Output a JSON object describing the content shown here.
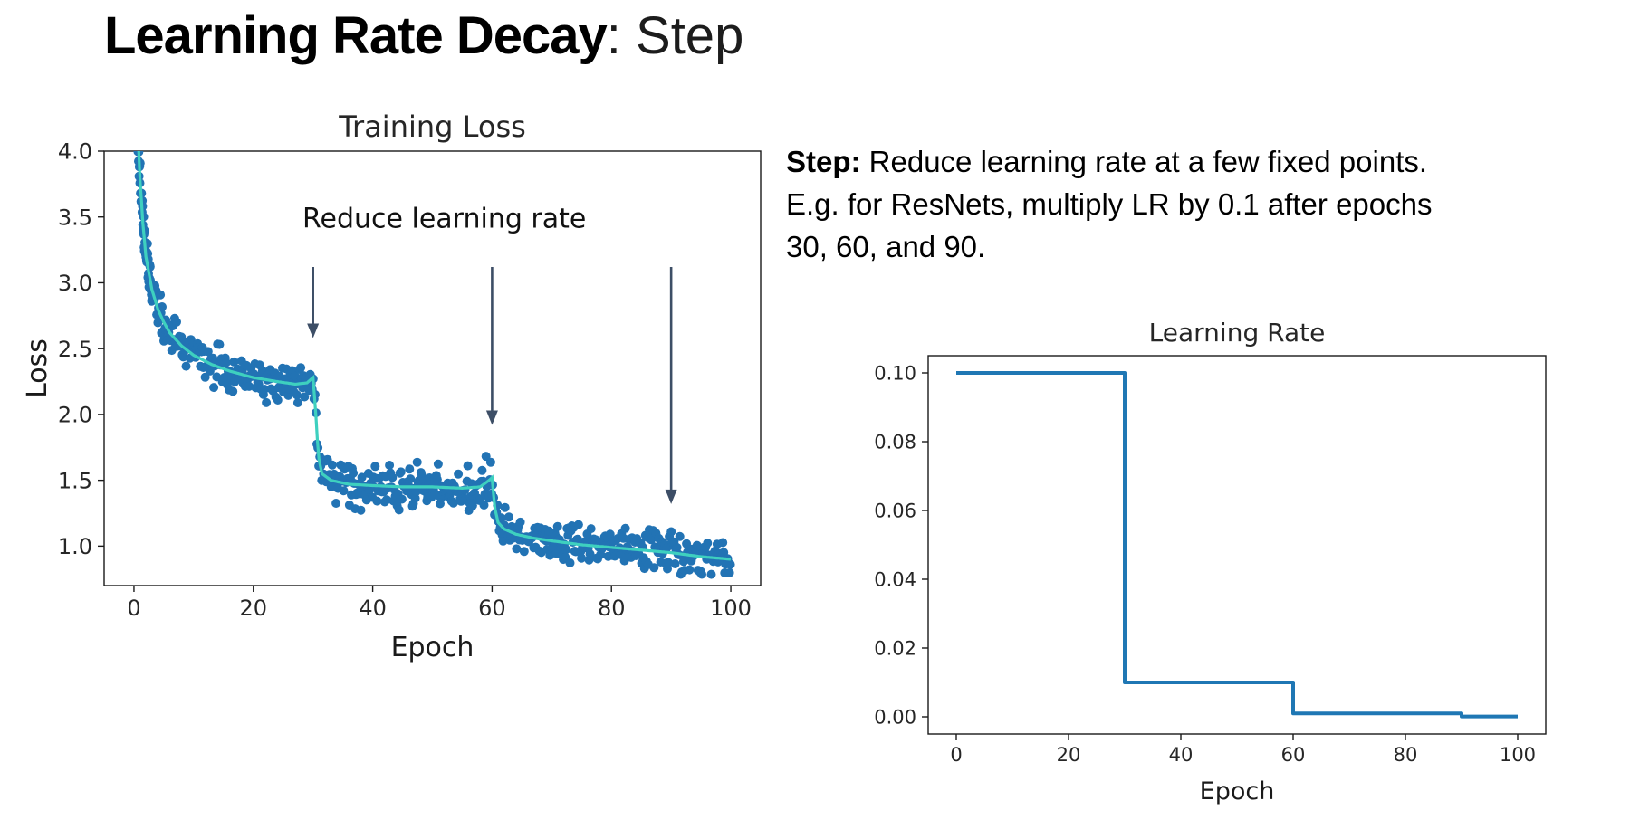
{
  "slide": {
    "title_bold": "Learning Rate Decay",
    "title_rest": ": Step",
    "description_lines": [
      {
        "bold": "Step:",
        "text": " Reduce learning rate at a few fixed points."
      },
      {
        "bold": "",
        "text": "E.g. for ResNets, multiply LR by 0.1 after epochs"
      },
      {
        "bold": "",
        "text": "30, 60, and 90."
      }
    ]
  },
  "chart_data": [
    {
      "type": "scatter",
      "title": "Training Loss",
      "xlabel": "Epoch",
      "ylabel": "Loss",
      "xlim": [
        -5,
        105
      ],
      "ylim": [
        0.7,
        4.0
      ],
      "xticks": [
        0,
        20,
        40,
        60,
        80,
        100
      ],
      "xticklabels": [
        "0",
        "20",
        "40",
        "60",
        "80",
        "100"
      ],
      "yticks": [
        1.0,
        1.5,
        2.0,
        2.5,
        3.0,
        3.5,
        4.0
      ],
      "yticklabels": [
        "1.0",
        "1.5",
        "2.0",
        "2.5",
        "3.0",
        "3.5",
        "4.0"
      ],
      "annotation": {
        "text": "Reduce learning rate",
        "x": 52,
        "y": 3.42
      },
      "arrows": [
        {
          "x": 30,
          "y_from": 3.12,
          "y_to": 2.58
        },
        {
          "x": 60,
          "y_from": 3.12,
          "y_to": 1.92
        },
        {
          "x": 90,
          "y_from": 3.12,
          "y_to": 1.32
        }
      ],
      "mean_curve": [
        [
          0,
          4.9
        ],
        [
          0.5,
          4.3
        ],
        [
          1,
          3.8
        ],
        [
          1.5,
          3.45
        ],
        [
          2,
          3.2
        ],
        [
          3,
          2.95
        ],
        [
          4,
          2.8
        ],
        [
          5,
          2.7
        ],
        [
          6,
          2.62
        ],
        [
          8,
          2.52
        ],
        [
          10,
          2.45
        ],
        [
          13,
          2.38
        ],
        [
          16,
          2.33
        ],
        [
          20,
          2.28
        ],
        [
          24,
          2.25
        ],
        [
          27,
          2.23
        ],
        [
          29,
          2.24
        ],
        [
          30,
          2.28
        ],
        [
          30.4,
          2.05
        ],
        [
          30.9,
          1.68
        ],
        [
          31.5,
          1.55
        ],
        [
          33,
          1.5
        ],
        [
          36,
          1.47
        ],
        [
          40,
          1.46
        ],
        [
          45,
          1.45
        ],
        [
          50,
          1.45
        ],
        [
          55,
          1.44
        ],
        [
          58,
          1.45
        ],
        [
          59.5,
          1.5
        ],
        [
          60,
          1.52
        ],
        [
          60.4,
          1.3
        ],
        [
          61,
          1.18
        ],
        [
          62,
          1.13
        ],
        [
          64,
          1.09
        ],
        [
          67,
          1.06
        ],
        [
          70,
          1.04
        ],
        [
          75,
          1.01
        ],
        [
          80,
          0.99
        ],
        [
          85,
          0.97
        ],
        [
          90,
          0.95
        ],
        [
          95,
          0.92
        ],
        [
          100,
          0.9
        ]
      ],
      "scatter_noise": 0.145,
      "colors": {
        "scatter": "#2273b4",
        "mean_line": "#3ed0bf",
        "arrow": "#3d4e66",
        "annotation_text": "#111111"
      }
    },
    {
      "type": "line",
      "title": "Learning Rate",
      "xlabel": "Epoch",
      "xlim": [
        -5,
        105
      ],
      "ylim": [
        -0.005,
        0.105
      ],
      "xticks": [
        0,
        20,
        40,
        60,
        80,
        100
      ],
      "xticklabels": [
        "0",
        "20",
        "40",
        "60",
        "80",
        "100"
      ],
      "yticks": [
        0.0,
        0.02,
        0.04,
        0.06,
        0.08,
        0.1
      ],
      "yticklabels": [
        "0.00",
        "0.02",
        "0.04",
        "0.06",
        "0.08",
        "0.10"
      ],
      "line_color": "#1f77b4",
      "steps": [
        {
          "from": 0,
          "to": 30,
          "lr": 0.1
        },
        {
          "from": 30,
          "to": 60,
          "lr": 0.01
        },
        {
          "from": 60,
          "to": 90,
          "lr": 0.001
        },
        {
          "from": 90,
          "to": 100,
          "lr": 0.0001
        }
      ]
    }
  ]
}
